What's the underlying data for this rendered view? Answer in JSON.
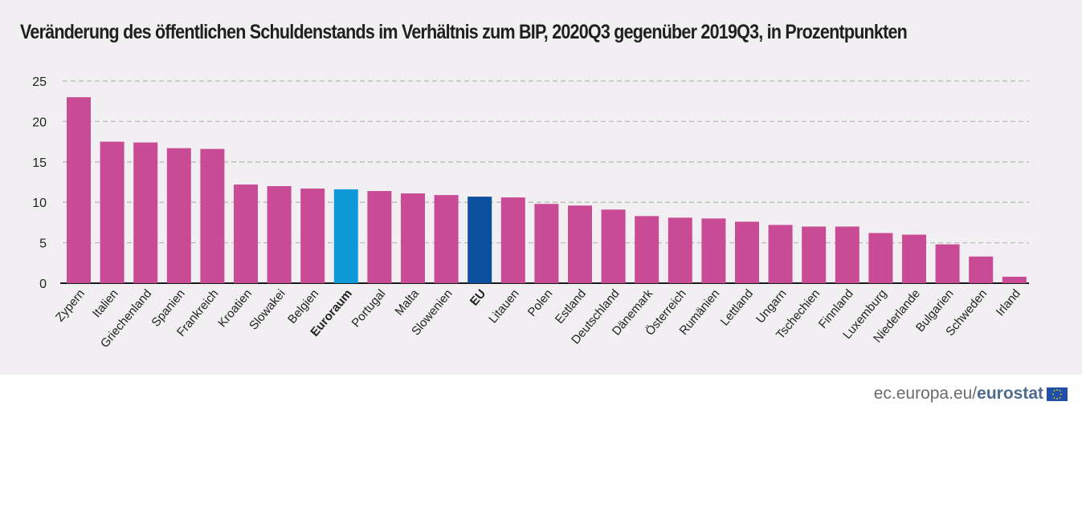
{
  "title": "Veränderung des öffentlichen Schuldenstands im Verhältnis zum BIP, 2020Q3 gegenüber 2019Q3, in Prozentpunkten",
  "footer": {
    "site": "ec.europa.eu/",
    "brand": "eurostat"
  },
  "colors": {
    "default": "#c94a95",
    "euroraum": "#0e9ad9",
    "eu": "#0b509c",
    "panel": "#f1eff1",
    "grid": "#bbbbbb"
  },
  "chart_data": {
    "type": "bar",
    "title": "Veränderung des öffentlichen Schuldenstands im Verhältnis zum BIP, 2020Q3 gegenüber 2019Q3, in Prozentpunkten",
    "xlabel": "",
    "ylabel": "",
    "ylim": [
      0,
      25
    ],
    "yticks": [
      0,
      5,
      10,
      15,
      20,
      25
    ],
    "grid": true,
    "categories": [
      "Zypern",
      "Italien",
      "Griechenland",
      "Spanien",
      "Frankreich",
      "Kroatien",
      "Slowakei",
      "Belgien",
      "Euroraum",
      "Portugal",
      "Malta",
      "Slowenien",
      "EU",
      "Litauen",
      "Polen",
      "Estland",
      "Deutschland",
      "Dänemark",
      "Österreich",
      "Rumänien",
      "Lettland",
      "Ungarn",
      "Tschechien",
      "Finnland",
      "Luxemburg",
      "Niederlande",
      "Bulgarien",
      "Schweden",
      "Irland"
    ],
    "values": [
      23.0,
      17.5,
      17.4,
      16.7,
      16.6,
      12.2,
      12.0,
      11.7,
      11.6,
      11.4,
      11.1,
      10.9,
      10.7,
      10.6,
      9.8,
      9.6,
      9.1,
      8.3,
      8.1,
      8.0,
      7.6,
      7.2,
      7.0,
      7.0,
      6.2,
      6.0,
      4.8,
      3.3,
      0.8
    ],
    "highlight": {
      "Euroraum": "euroraum",
      "EU": "eu"
    }
  }
}
